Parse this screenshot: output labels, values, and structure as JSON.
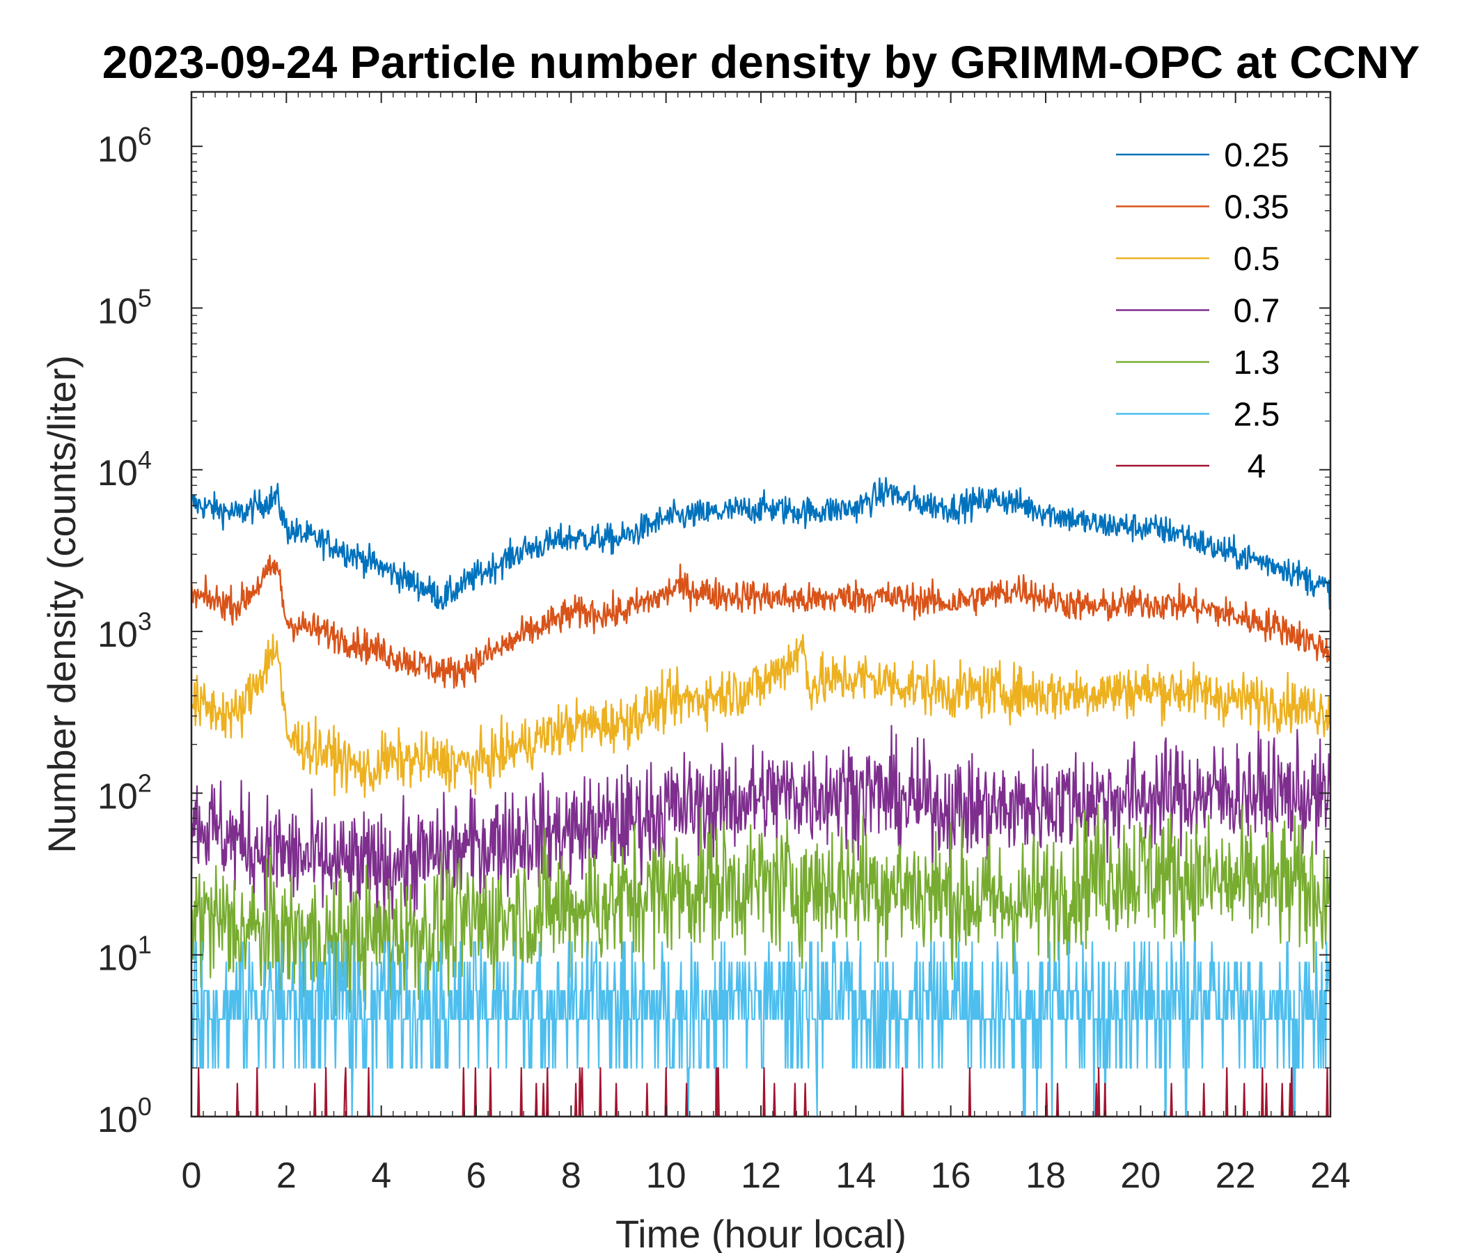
{
  "chart_data": {
    "type": "line",
    "title": "2023-09-24 Particle number density by GRIMM-OPC at CCNY",
    "xlabel": "Time (hour local)",
    "ylabel": "Number density (counts/liter)",
    "xlim": [
      0,
      24
    ],
    "ylim": [
      1,
      2000000
    ],
    "yscale": "log",
    "x_ticks": [
      0,
      2,
      4,
      6,
      8,
      10,
      12,
      14,
      16,
      18,
      20,
      22,
      24
    ],
    "x_tick_labels": [
      "0",
      "2",
      "4",
      "6",
      "8",
      "10",
      "12",
      "14",
      "16",
      "18",
      "20",
      "22",
      "24"
    ],
    "y_ticks": [
      1,
      10,
      100,
      1000,
      10000,
      100000,
      1000000
    ],
    "y_tick_base": "10",
    "y_tick_exponents": [
      "0",
      "1",
      "2",
      "3",
      "4",
      "5",
      "6"
    ],
    "legend_position": "top-right",
    "grid": false,
    "series": [
      {
        "name": "0.25",
        "color": "#0072BD",
        "x": [
          0,
          1,
          1.8,
          2,
          3,
          4,
          5,
          5.3,
          6,
          7,
          8,
          9,
          10,
          11,
          12,
          13,
          14,
          14.7,
          15,
          16,
          17,
          18,
          19,
          20,
          20.8,
          21.5,
          22,
          23,
          24
        ],
        "values": [
          6200,
          5300,
          6800,
          4300,
          3400,
          2500,
          1800,
          1600,
          2200,
          3200,
          3800,
          3700,
          5000,
          5400,
          5800,
          5500,
          5800,
          7500,
          6500,
          5800,
          6700,
          5500,
          4600,
          4400,
          4100,
          3300,
          3000,
          2500,
          1800
        ]
      },
      {
        "name": "0.35",
        "color": "#D95319",
        "x": [
          0,
          1,
          1.8,
          2,
          3,
          4,
          5,
          5.5,
          6,
          7,
          8,
          9,
          10,
          10.2,
          11,
          12,
          13,
          14,
          15,
          16,
          17,
          17.5,
          18,
          19,
          20,
          21,
          22,
          23,
          24
        ],
        "values": [
          1650,
          1450,
          2600,
          1150,
          950,
          750,
          600,
          550,
          650,
          950,
          1300,
          1300,
          1700,
          1900,
          1700,
          1650,
          1550,
          1650,
          1600,
          1500,
          1700,
          1850,
          1600,
          1400,
          1500,
          1450,
          1250,
          1050,
          750
        ]
      },
      {
        "name": "0.5",
        "color": "#EDB120",
        "x": [
          0,
          1,
          1.8,
          2,
          3,
          3.8,
          4,
          5,
          6,
          7,
          8,
          9,
          10,
          11,
          12,
          12.9,
          13,
          14,
          15,
          16,
          17,
          18,
          19,
          20,
          21,
          22,
          23,
          24
        ],
        "values": [
          360,
          300,
          850,
          220,
          170,
          130,
          160,
          160,
          150,
          200,
          260,
          270,
          360,
          400,
          460,
          800,
          470,
          520,
          470,
          420,
          430,
          410,
          420,
          440,
          430,
          380,
          360,
          320
        ]
      },
      {
        "name": "0.7",
        "color": "#7E2F8E",
        "x": [
          0,
          1,
          2,
          3,
          4,
          5,
          6,
          7,
          8,
          9,
          10,
          11,
          12,
          13,
          14,
          15,
          16,
          17,
          18,
          19,
          20,
          21,
          22,
          23,
          24
        ],
        "values": [
          70,
          50,
          42,
          36,
          36,
          40,
          48,
          55,
          58,
          65,
          80,
          85,
          95,
          100,
          105,
          92,
          82,
          78,
          88,
          92,
          95,
          98,
          100,
          100,
          90
        ]
      },
      {
        "name": "1.3",
        "color": "#77AC30",
        "x": [
          0,
          1,
          2,
          3,
          4,
          5,
          6,
          7,
          8,
          9,
          10,
          11,
          12,
          13,
          14,
          15,
          16,
          17,
          18,
          19,
          20,
          21,
          22,
          23,
          24
        ],
        "values": [
          18,
          14,
          13,
          12,
          13,
          14,
          16,
          18,
          20,
          21,
          25,
          27,
          27,
          26,
          28,
          26,
          23,
          21,
          22,
          32,
          33,
          30,
          27,
          27,
          24
        ]
      },
      {
        "name": "2.5",
        "color": "#4DBEEE",
        "x": [
          0,
          1,
          2,
          3,
          4,
          5,
          6,
          7,
          8,
          9,
          10,
          11,
          12,
          13,
          14,
          15,
          16,
          17,
          18,
          19,
          20,
          21,
          22,
          23,
          24
        ],
        "values": [
          5,
          5,
          5,
          5,
          5,
          5,
          5,
          5,
          5,
          5,
          5,
          5,
          5,
          5,
          5,
          5,
          5,
          5,
          5,
          5,
          5,
          5,
          5,
          5,
          5
        ]
      },
      {
        "name": "4",
        "color": "#A2142F",
        "x": [
          0,
          24
        ],
        "values": [
          1,
          1
        ]
      }
    ]
  }
}
